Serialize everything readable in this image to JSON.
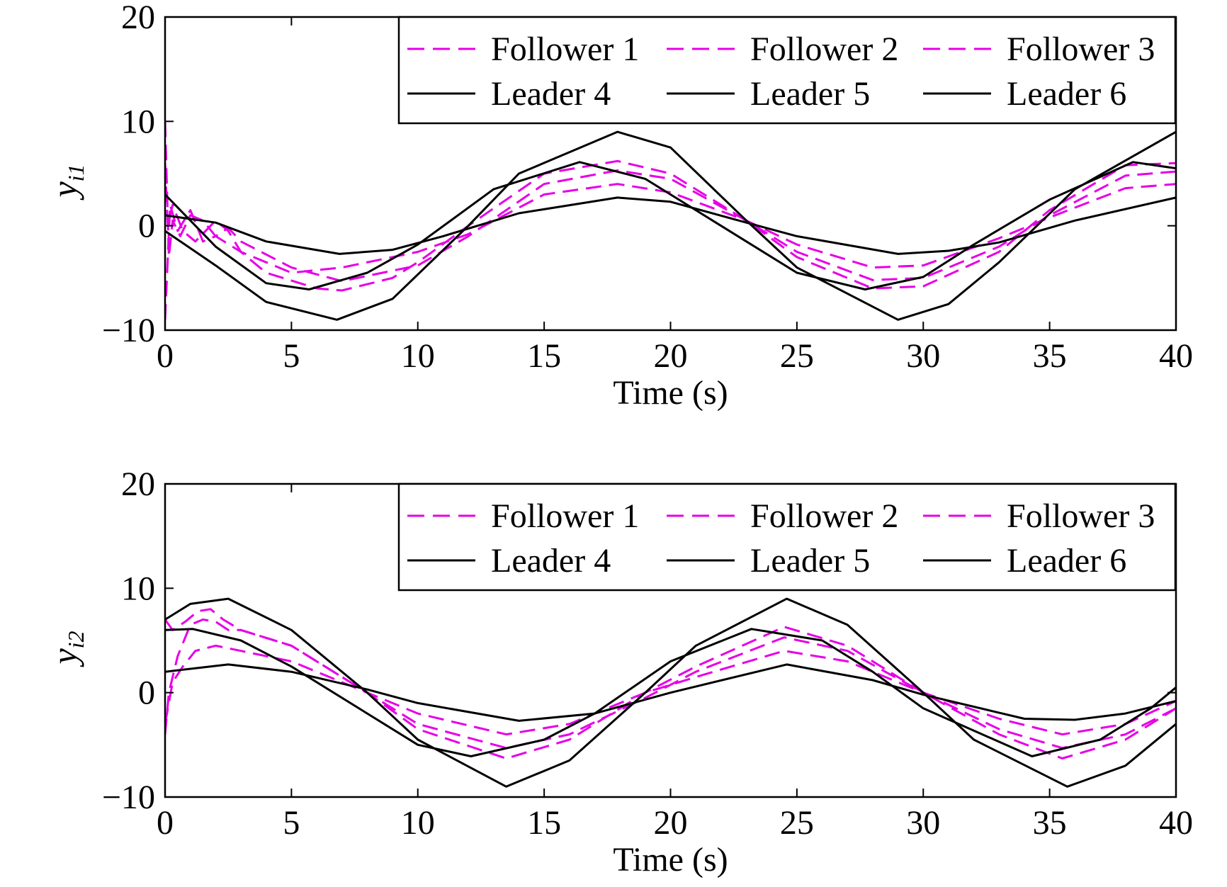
{
  "colors": {
    "follower": "#e600e6",
    "leader": "#000000",
    "background": "#ffffff"
  },
  "chart_data": [
    {
      "type": "line",
      "xlabel": "Time (s)",
      "ylabel_main": "y",
      "ylabel_sub": "i1",
      "xlim": [
        0,
        40
      ],
      "ylim": [
        -10,
        20
      ],
      "xticks": [
        0,
        5,
        10,
        15,
        20,
        25,
        30,
        35,
        40
      ],
      "yticks": [
        -10,
        0,
        10,
        20
      ],
      "ytick_labels": [
        "−10",
        "0",
        "10",
        "20"
      ],
      "grid": false,
      "legend_position": "top-right",
      "legend_columns": 3,
      "series": [
        {
          "name": "Follower 1",
          "role": "follower",
          "style": "dashed",
          "x": [
            0,
            0.15,
            0.3,
            0.6,
            1,
            1.5,
            2,
            2.5,
            3,
            5,
            7,
            10,
            12,
            15,
            17.9,
            20,
            23,
            25,
            28,
            30,
            33,
            35,
            38,
            40
          ],
          "y": [
            10,
            -3,
            0.5,
            -1,
            1,
            0.5,
            -1,
            -0.2,
            -1.5,
            -4,
            -5.3,
            -3.8,
            -1,
            4,
            5.3,
            4.5,
            0.5,
            -2.5,
            -5.2,
            -5,
            -2,
            1,
            4.8,
            5.2
          ]
        },
        {
          "name": "Follower 2",
          "role": "follower",
          "style": "dashed",
          "x": [
            0,
            0.2,
            0.5,
            1,
            1.5,
            2,
            3,
            5,
            7,
            10,
            12,
            15,
            17.9,
            20,
            23,
            25,
            28,
            30,
            33,
            35,
            38,
            40
          ],
          "y": [
            -9,
            2,
            -0.5,
            1.5,
            -1.5,
            -1,
            -2.5,
            -4.5,
            -4,
            -2.5,
            -0.8,
            3,
            4,
            3.2,
            0.5,
            -1.8,
            -4,
            -3.8,
            -1.2,
            0.8,
            3.6,
            4
          ]
        },
        {
          "name": "Follower 3",
          "role": "follower",
          "style": "dashed",
          "x": [
            0,
            0.1,
            0.3,
            0.7,
            1.2,
            2,
            2.5,
            3,
            4,
            6,
            7,
            9,
            10,
            12,
            15,
            17.9,
            20,
            23,
            25,
            28,
            30,
            33,
            35,
            38,
            40
          ],
          "y": [
            6,
            0,
            2,
            -0.5,
            -1.5,
            0.5,
            -0.5,
            -2.5,
            -4.5,
            -6,
            -6.2,
            -5,
            -3.5,
            0,
            5,
            6.2,
            5,
            0.5,
            -3,
            -6,
            -5.8,
            -2.5,
            1.5,
            5.8,
            6
          ]
        },
        {
          "name": "Leader 4",
          "role": "leader",
          "style": "solid",
          "x": [
            0,
            2,
            4,
            6.9,
            9,
            11,
            14,
            17.9,
            20,
            23,
            25,
            29,
            31,
            33,
            36,
            40
          ],
          "y": [
            1,
            0.3,
            -1.5,
            -2.7,
            -2.3,
            -1,
            1.2,
            2.7,
            2.3,
            0.3,
            -1,
            -2.7,
            -2.4,
            -1.6,
            0.5,
            2.7
          ]
        },
        {
          "name": "Leader 5",
          "role": "leader",
          "style": "solid",
          "x": [
            0,
            2,
            4,
            5.7,
            8,
            10,
            13,
            16.4,
            19,
            21,
            23,
            25,
            27.7,
            30,
            32,
            35,
            38.3,
            40
          ],
          "y": [
            3,
            -2,
            -5.5,
            -6.1,
            -4.5,
            -1.8,
            3.5,
            6.1,
            4.5,
            1.5,
            -1.5,
            -4.5,
            -6.1,
            -4.9,
            -1.8,
            2.5,
            6.1,
            5.5
          ]
        },
        {
          "name": "Leader 6",
          "role": "leader",
          "style": "solid",
          "x": [
            0,
            2,
            4,
            6.8,
            9,
            12,
            14,
            17.9,
            20,
            23,
            25,
            29,
            31,
            33,
            36,
            40
          ],
          "y": [
            -0.5,
            -3.8,
            -7.3,
            -9,
            -7,
            0,
            5,
            9,
            7.5,
            0.5,
            -4,
            -9,
            -7.5,
            -3.5,
            3.5,
            9
          ]
        }
      ]
    },
    {
      "type": "line",
      "xlabel": "Time (s)",
      "ylabel_main": "y",
      "ylabel_sub": "i2",
      "xlim": [
        0,
        40
      ],
      "ylim": [
        -10,
        20
      ],
      "xticks": [
        0,
        5,
        10,
        15,
        20,
        25,
        30,
        35,
        40
      ],
      "yticks": [
        -10,
        0,
        10,
        20
      ],
      "ytick_labels": [
        "−10",
        "0",
        "10",
        "20"
      ],
      "grid": false,
      "legend_position": "top-right",
      "legend_columns": 3,
      "series": [
        {
          "name": "Follower 1",
          "role": "follower",
          "style": "dashed",
          "x": [
            0,
            0.15,
            0.5,
            1,
            1.5,
            2,
            2.5,
            3,
            5,
            8,
            10,
            13.5,
            16,
            19,
            21,
            24.5,
            27,
            30,
            33,
            35.5,
            38,
            40
          ],
          "y": [
            -4,
            0,
            3.5,
            6.5,
            7,
            6.8,
            6,
            6,
            4.5,
            0,
            -3,
            -5.3,
            -4,
            -0.5,
            2,
            5.3,
            4,
            0,
            -3.5,
            -5.3,
            -4,
            -1.5
          ]
        },
        {
          "name": "Follower 2",
          "role": "follower",
          "style": "dashed",
          "x": [
            0,
            0.3,
            0.7,
            1.2,
            2,
            3,
            5,
            8,
            10,
            13.5,
            16,
            19,
            21,
            24.5,
            27,
            30,
            33,
            35.5,
            38,
            40
          ],
          "y": [
            -3,
            1,
            2.5,
            4,
            4.5,
            4,
            3,
            0,
            -2,
            -4,
            -3,
            0,
            1.5,
            4,
            3,
            0,
            -2.5,
            -4,
            -3,
            -0.8
          ]
        },
        {
          "name": "Follower 3",
          "role": "follower",
          "style": "dashed",
          "x": [
            0,
            0.3,
            0.8,
            1.3,
            1.8,
            2.3,
            3,
            5,
            8,
            10,
            13.5,
            16,
            19,
            21,
            24.5,
            27,
            30,
            33,
            35.5,
            38,
            40
          ],
          "y": [
            7,
            6,
            6.8,
            7.8,
            8,
            7,
            6,
            4.5,
            0,
            -3.5,
            -6.3,
            -4.5,
            0,
            2.5,
            6.3,
            4.5,
            0,
            -4,
            -6.3,
            -4.5,
            -1.5
          ]
        },
        {
          "name": "Leader 4",
          "role": "leader",
          "style": "solid",
          "x": [
            0,
            2.5,
            5,
            8,
            10,
            14,
            17,
            20,
            24.6,
            28,
            30,
            34,
            36,
            38,
            40
          ],
          "y": [
            2,
            2.7,
            2,
            0.3,
            -1,
            -2.7,
            -2,
            0,
            2.7,
            1.2,
            -0.2,
            -2.5,
            -2.6,
            -2,
            -0.8
          ]
        },
        {
          "name": "Leader 5",
          "role": "leader",
          "style": "solid",
          "x": [
            0,
            1.1,
            3,
            5,
            8,
            10,
            12.1,
            15,
            17,
            20,
            23.2,
            26,
            28,
            30,
            34.3,
            37,
            39,
            40
          ],
          "y": [
            6,
            6.1,
            5,
            2.5,
            -2,
            -5,
            -6.1,
            -4.5,
            -2,
            3,
            6.1,
            5,
            2,
            -1.5,
            -6.1,
            -4.5,
            -1.5,
            0.5
          ]
        },
        {
          "name": "Leader 6",
          "role": "leader",
          "style": "solid",
          "x": [
            0,
            1,
            2.5,
            5,
            8,
            10,
            13.5,
            16,
            19,
            21,
            24.6,
            27,
            30,
            32,
            35.7,
            38,
            40
          ],
          "y": [
            7,
            8.5,
            9,
            6,
            0,
            -4.5,
            -9,
            -6.5,
            0,
            4.5,
            9,
            6.5,
            0,
            -4.5,
            -9,
            -7,
            -3
          ]
        }
      ]
    }
  ]
}
